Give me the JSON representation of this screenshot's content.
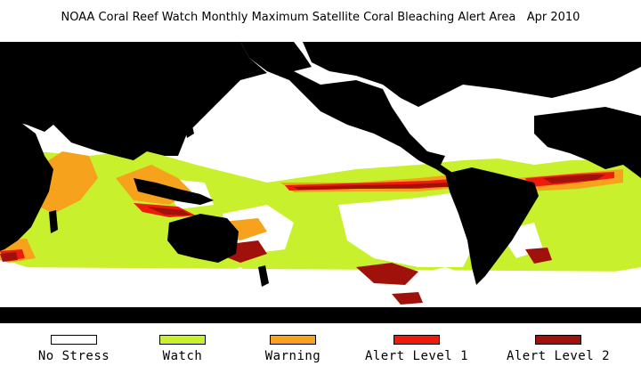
{
  "header": {
    "title": "NOAA Coral Reef Watch Monthly Maximum Satellite Coral Bleaching Alert Area",
    "date": "Apr 2010"
  },
  "colors": {
    "land": "#000000",
    "no_stress": "#ffffff",
    "watch": "#c8f02c",
    "warning": "#f6a21c",
    "alert1": "#ee1a0c",
    "alert2": "#a0110c"
  },
  "legend": [
    {
      "label": "No Stress",
      "color": "#ffffff"
    },
    {
      "label": "Watch",
      "color": "#c8f02c"
    },
    {
      "label": "Warning",
      "color": "#f6a21c"
    },
    {
      "label": "Alert Level 1",
      "color": "#ee1a0c"
    },
    {
      "label": "Alert Level 2",
      "color": "#a0110c"
    }
  ]
}
